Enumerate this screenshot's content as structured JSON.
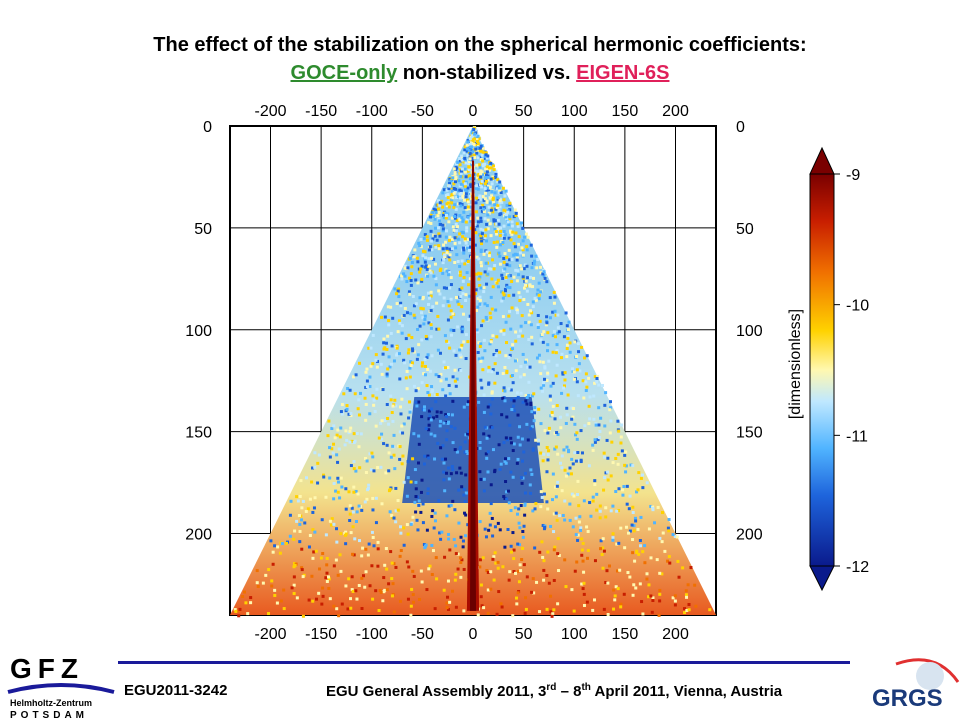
{
  "title": {
    "line1": "The effect of the stabilization on the spherical hermonic coefficients:",
    "goce": "GOCE-only",
    "middle": " non-stabilized vs. ",
    "eigen": "EIGEN-6S"
  },
  "chart_data": {
    "type": "heatmap",
    "x_ticks": [
      "-200",
      "-150",
      "-100",
      "-50",
      "0",
      "50",
      "100",
      "150",
      "200"
    ],
    "y_ticks": [
      "0",
      "50",
      "100",
      "150",
      "200"
    ],
    "xlim": [
      -240,
      240
    ],
    "ylim": [
      0,
      240
    ],
    "colorbar": {
      "label": "[dimensionless]",
      "ticks": [
        "-9",
        "-10",
        "-11",
        "-12"
      ],
      "range": [
        -12,
        -9
      ]
    },
    "grid": true
  },
  "footer": {
    "left": "EGU2011-3242",
    "right_prefix": "EGU General Assembly 2011, 3",
    "sup1": "rd",
    "right_mid": " – 8",
    "sup2": "th",
    "right_suffix": " April 2011, Vienna, Austria"
  },
  "logos": {
    "gfz": "GFZ",
    "gfz_sub1": "Helmholtz-Zentrum",
    "gfz_sub2": "POTSDAM",
    "grgs": "GRGS"
  },
  "colors": {
    "footer_line": "#1a1a9a",
    "goce": "#2e8b2e",
    "eigen": "#e0205a"
  }
}
